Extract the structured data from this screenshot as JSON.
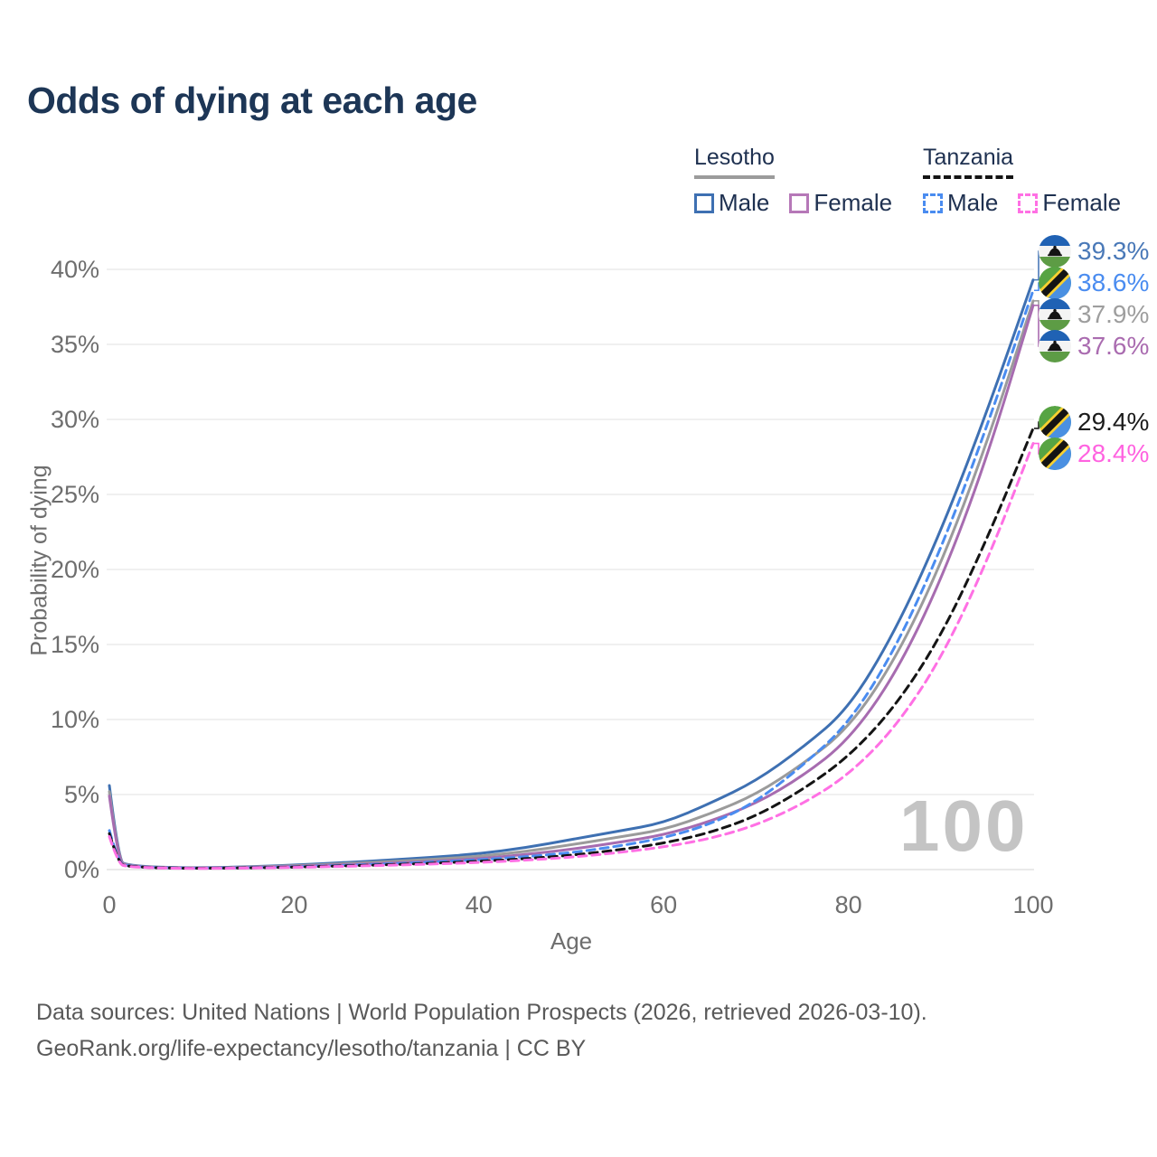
{
  "title": "Odds of dying at each age",
  "legend": {
    "groups": [
      {
        "country": "Lesotho",
        "line_style": "solid",
        "line_color": "#9b9b9b",
        "items": [
          {
            "label": "Male",
            "box_style": "solid",
            "box_color": "#3e70b2"
          },
          {
            "label": "Female",
            "box_style": "solid",
            "box_color": "#b678b8"
          }
        ]
      },
      {
        "country": "Tanzania",
        "line_style": "dashed",
        "line_color": "#141414",
        "items": [
          {
            "label": "Male",
            "box_style": "dashed",
            "box_color": "#4a8cf0"
          },
          {
            "label": "Female",
            "box_style": "dashed",
            "box_color": "#ff70e4"
          }
        ]
      }
    ]
  },
  "chart_data": {
    "type": "line",
    "title": "Odds of dying at each age",
    "xlabel": "Age",
    "ylabel": "Probability of dying",
    "xlim": [
      0,
      100
    ],
    "ylim": [
      0,
      40
    ],
    "grid": "horizontal",
    "y_ticks": [
      {
        "value": 0,
        "label": "0%"
      },
      {
        "value": 5,
        "label": "5%"
      },
      {
        "value": 10,
        "label": "10%"
      },
      {
        "value": 15,
        "label": "15%"
      },
      {
        "value": 20,
        "label": "20%"
      },
      {
        "value": 25,
        "label": "25%"
      },
      {
        "value": 30,
        "label": "30%"
      },
      {
        "value": 35,
        "label": "35%"
      },
      {
        "value": 40,
        "label": "40%"
      }
    ],
    "x_ticks": [
      {
        "value": 0,
        "label": "0"
      },
      {
        "value": 20,
        "label": "20"
      },
      {
        "value": 40,
        "label": "40"
      },
      {
        "value": 60,
        "label": "60"
      },
      {
        "value": 80,
        "label": "80"
      },
      {
        "value": 100,
        "label": "100"
      }
    ],
    "x": [
      0,
      1,
      2,
      5,
      10,
      15,
      20,
      25,
      30,
      35,
      40,
      45,
      50,
      55,
      60,
      65,
      70,
      75,
      80,
      85,
      90,
      95,
      100
    ],
    "series": [
      {
        "name": "Lesotho Male",
        "country": "Lesotho",
        "sex": "Male",
        "style": "solid",
        "color": "#3e70b2",
        "values": [
          5.6,
          0.55,
          0.3,
          0.15,
          0.12,
          0.18,
          0.3,
          0.45,
          0.62,
          0.82,
          1.05,
          1.45,
          2.0,
          2.55,
          3.1,
          4.4,
          5.9,
          8.1,
          10.7,
          15.8,
          22.5,
          30.5,
          39.3
        ],
        "end_value": 39.3
      },
      {
        "name": "Tanzania Male",
        "country": "Tanzania",
        "sex": "Male",
        "style": "dashed",
        "color": "#4a8cf0",
        "values": [
          2.6,
          0.4,
          0.24,
          0.12,
          0.09,
          0.12,
          0.18,
          0.27,
          0.37,
          0.5,
          0.65,
          0.85,
          1.12,
          1.55,
          2.1,
          3.0,
          4.5,
          6.9,
          9.7,
          14.6,
          21.3,
          29.5,
          38.6
        ],
        "end_value": 38.6
      },
      {
        "name": "Lesotho Total",
        "country": "Lesotho",
        "sex": "Both",
        "style": "solid",
        "color": "#9b9b9b",
        "values": [
          5.2,
          0.5,
          0.28,
          0.14,
          0.11,
          0.16,
          0.26,
          0.38,
          0.52,
          0.68,
          0.88,
          1.2,
          1.65,
          2.15,
          2.65,
          3.7,
          5.0,
          7.0,
          9.4,
          13.9,
          20.3,
          28.4,
          37.9
        ],
        "end_value": 37.9
      },
      {
        "name": "Lesotho Female",
        "country": "Lesotho",
        "sex": "Female",
        "style": "solid",
        "color": "#a76cb0",
        "values": [
          4.9,
          0.45,
          0.26,
          0.13,
          0.1,
          0.14,
          0.22,
          0.31,
          0.42,
          0.55,
          0.72,
          1.0,
          1.35,
          1.8,
          2.3,
          3.2,
          4.4,
          6.2,
          8.6,
          12.9,
          19.2,
          27.4,
          37.6
        ],
        "end_value": 37.6
      },
      {
        "name": "Tanzania Total",
        "country": "Tanzania",
        "sex": "Both",
        "style": "dashed",
        "color": "#141414",
        "values": [
          2.4,
          0.37,
          0.22,
          0.11,
          0.08,
          0.11,
          0.16,
          0.24,
          0.32,
          0.42,
          0.55,
          0.72,
          0.95,
          1.3,
          1.75,
          2.45,
          3.55,
          5.3,
          7.5,
          10.8,
          15.5,
          22.0,
          29.4
        ],
        "end_value": 29.4
      },
      {
        "name": "Tanzania Female",
        "country": "Tanzania",
        "sex": "Female",
        "style": "dashed",
        "color": "#ff70e4",
        "values": [
          2.2,
          0.34,
          0.2,
          0.1,
          0.07,
          0.1,
          0.14,
          0.21,
          0.28,
          0.37,
          0.47,
          0.62,
          0.82,
          1.12,
          1.5,
          2.05,
          2.95,
          4.35,
          6.3,
          9.4,
          14.0,
          20.5,
          28.4
        ],
        "end_value": 28.4
      }
    ],
    "watermark": "100"
  },
  "end_labels": [
    {
      "text": "39.3%",
      "color": "#4a79b8",
      "flag": "lesotho",
      "series": "Lesotho Male"
    },
    {
      "text": "38.6%",
      "color": "#4a8cf0",
      "flag": "tanzania",
      "series": "Tanzania Male"
    },
    {
      "text": "37.9%",
      "color": "#9e9e9e",
      "flag": "lesotho",
      "series": "Lesotho Total"
    },
    {
      "text": "37.6%",
      "color": "#aa6cb0",
      "flag": "lesotho",
      "series": "Lesotho Female"
    },
    {
      "text": "29.4%",
      "color": "#1c1c1c",
      "flag": "tanzania",
      "series": "Tanzania Total"
    },
    {
      "text": "28.4%",
      "color": "#ff63e0",
      "flag": "tanzania",
      "series": "Tanzania Female"
    }
  ],
  "footer": {
    "line1": "Data sources: United Nations | World Population Prospects (2026, retrieved 2026-03-10).",
    "line2": "GeoRank.org/life-expectancy/lesotho/tanzania | CC BY"
  }
}
